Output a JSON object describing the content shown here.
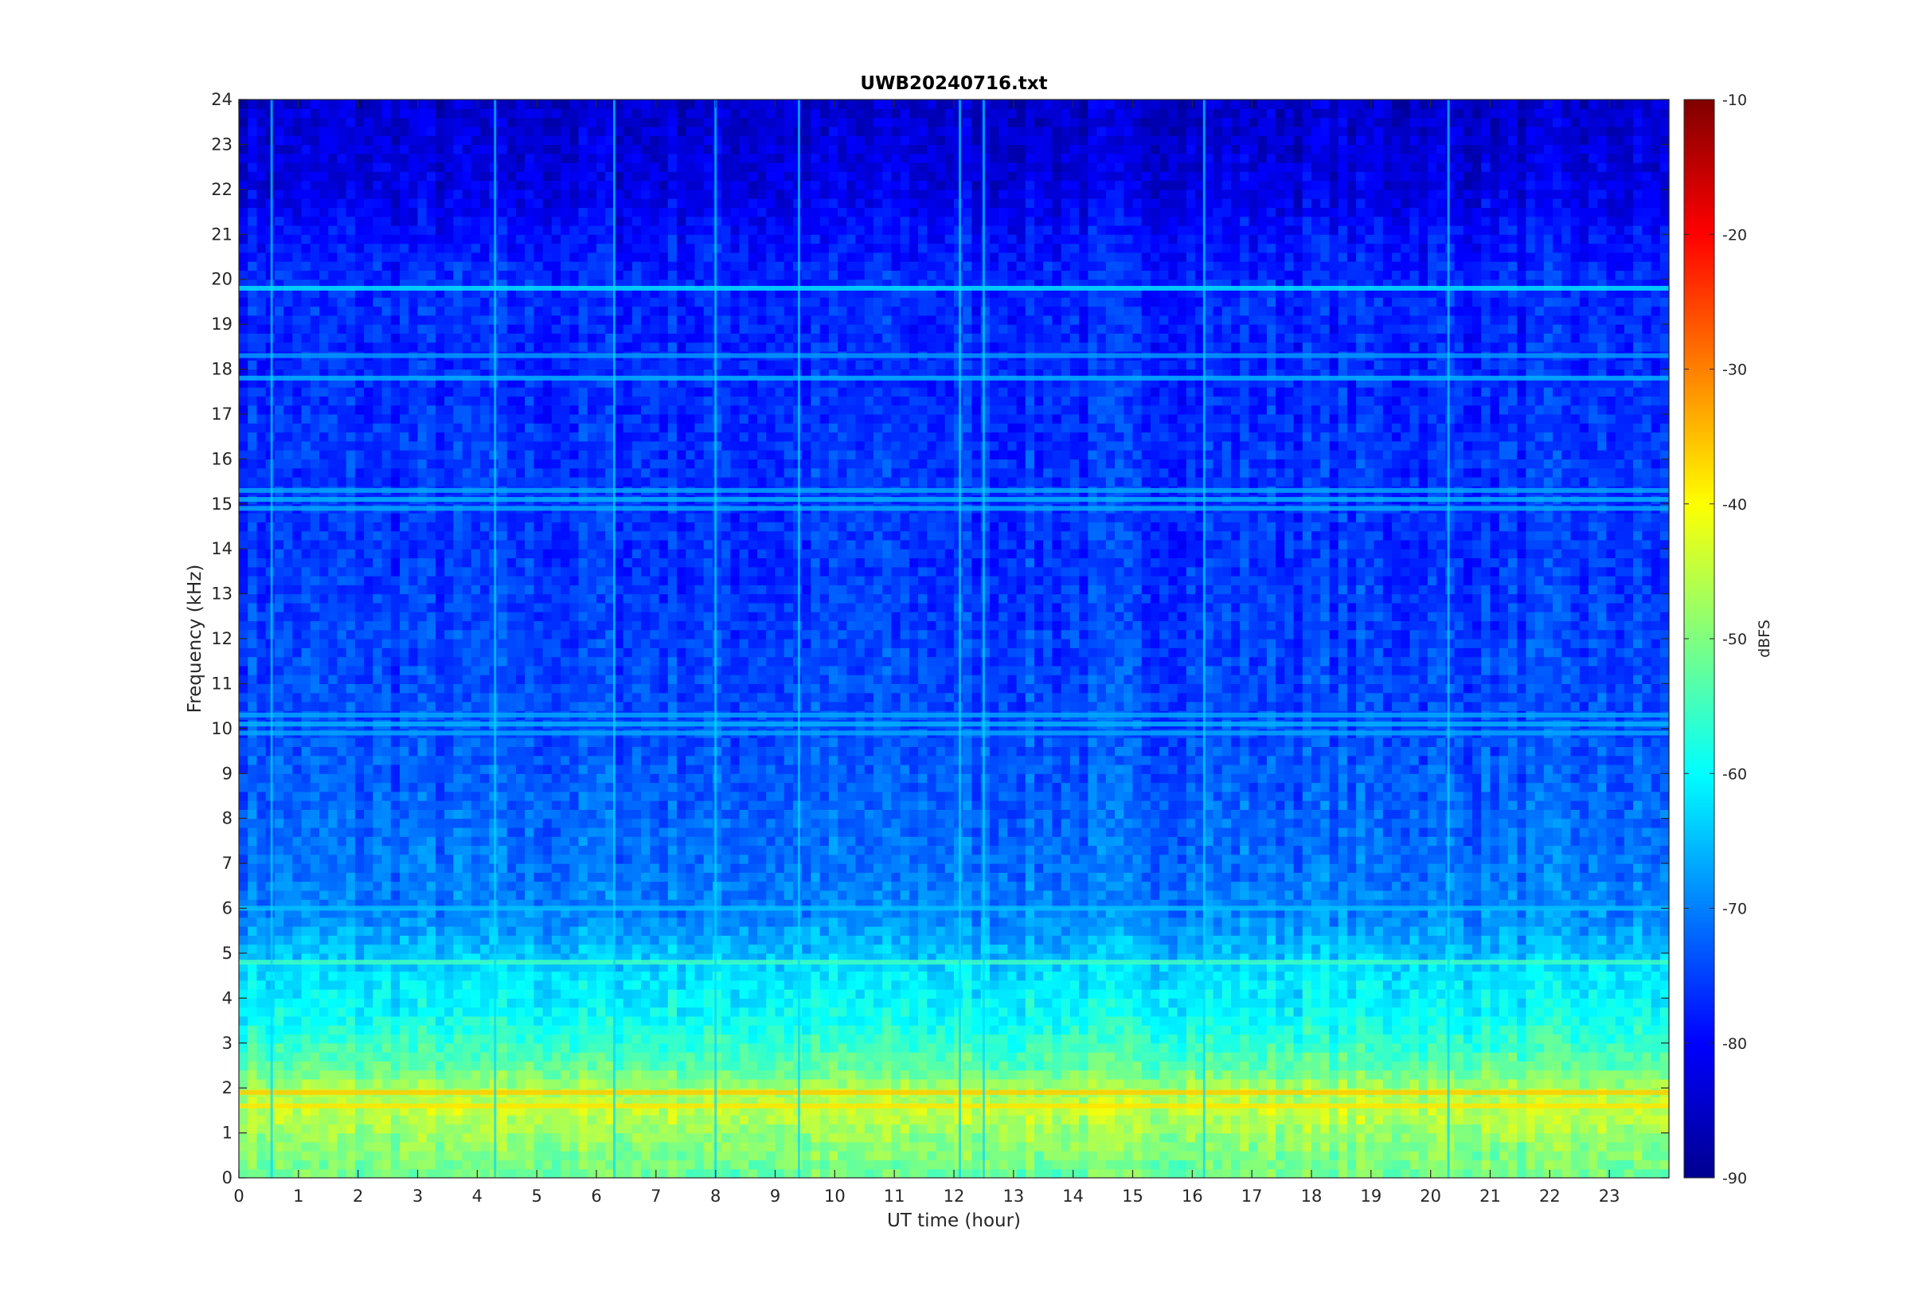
{
  "chart_data": {
    "type": "heatmap",
    "title": "UWB20240716.txt",
    "xlabel": "UT time (hour)",
    "ylabel": "Frequency (kHz)",
    "xlim": [
      0,
      24
    ],
    "ylim": [
      0,
      24
    ],
    "x_ticks": [
      "0",
      "1",
      "2",
      "3",
      "4",
      "5",
      "6",
      "7",
      "8",
      "9",
      "10",
      "11",
      "12",
      "13",
      "14",
      "15",
      "16",
      "17",
      "18",
      "19",
      "20",
      "21",
      "22",
      "23"
    ],
    "y_ticks": [
      "0",
      "1",
      "2",
      "3",
      "4",
      "5",
      "6",
      "7",
      "8",
      "9",
      "10",
      "11",
      "12",
      "13",
      "14",
      "15",
      "16",
      "17",
      "18",
      "19",
      "20",
      "21",
      "22",
      "23",
      "24"
    ],
    "colormap": "jet",
    "colorbar": {
      "label": "dBFS",
      "range": [
        -90,
        -10
      ],
      "ticks": [
        "-90",
        "-80",
        "-70",
        "-60",
        "-50",
        "-40",
        "-30",
        "-20",
        "-10"
      ]
    },
    "level_profile_khz_dbfs": [
      [
        0,
        -52
      ],
      [
        0.5,
        -50
      ],
      [
        1,
        -48
      ],
      [
        1.5,
        -45
      ],
      [
        2,
        -47
      ],
      [
        2.5,
        -53
      ],
      [
        3,
        -56
      ],
      [
        3.5,
        -59
      ],
      [
        4,
        -61
      ],
      [
        4.5,
        -62
      ],
      [
        5,
        -65
      ],
      [
        6,
        -70
      ],
      [
        7,
        -71
      ],
      [
        8,
        -72
      ],
      [
        9,
        -73
      ],
      [
        10,
        -74
      ],
      [
        12,
        -75
      ],
      [
        14,
        -76
      ],
      [
        16,
        -76
      ],
      [
        18,
        -77
      ],
      [
        20,
        -77
      ],
      [
        21,
        -79
      ],
      [
        22,
        -82
      ],
      [
        23,
        -83
      ],
      [
        24,
        -84
      ]
    ],
    "horizontal_bands": [
      {
        "khz": 19.8,
        "dbfs": -62
      },
      {
        "khz": 18.3,
        "dbfs": -68
      },
      {
        "khz": 17.8,
        "dbfs": -66
      },
      {
        "khz": 15.3,
        "dbfs": -67
      },
      {
        "khz": 15.1,
        "dbfs": -66
      },
      {
        "khz": 14.9,
        "dbfs": -67
      },
      {
        "khz": 10.3,
        "dbfs": -67
      },
      {
        "khz": 10.1,
        "dbfs": -66
      },
      {
        "khz": 9.9,
        "dbfs": -67
      },
      {
        "khz": 6.0,
        "dbfs": -65
      },
      {
        "khz": 4.8,
        "dbfs": -55
      },
      {
        "khz": 1.9,
        "dbfs": -36
      },
      {
        "khz": 1.6,
        "dbfs": -38
      }
    ],
    "vertical_spikes_hour": [
      0.55,
      4.3,
      6.3,
      8.0,
      9.4,
      12.1,
      12.5,
      16.2,
      20.3
    ]
  }
}
